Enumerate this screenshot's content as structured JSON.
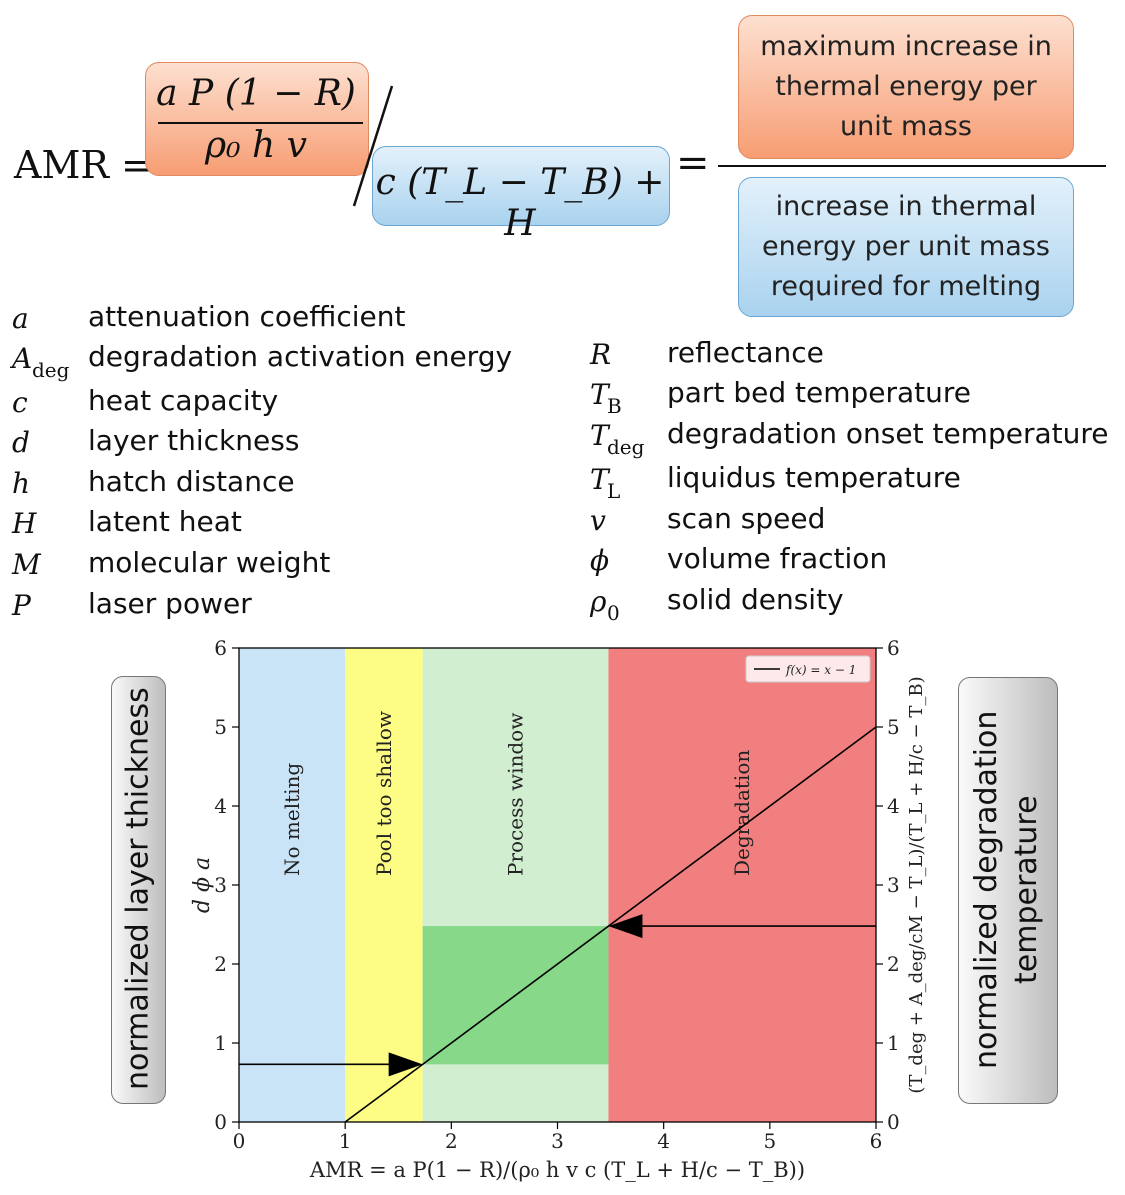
{
  "formula": {
    "lhs": "AMR =",
    "numerator_top": "a P (1 − R)",
    "numerator_bottom": "ρ₀ h v",
    "denominator": "c (T_L − T_B) + H",
    "equals": "=",
    "top_box": "maximum increase in thermal energy per unit mass",
    "bottom_box": "increase in thermal energy per unit mass required for melting"
  },
  "legend_left": [
    {
      "sym": "a",
      "desc": "attenuation coefficient"
    },
    {
      "sym": "A",
      "sub": "deg",
      "desc": "degradation activation energy"
    },
    {
      "sym": "c",
      "desc": "heat capacity"
    },
    {
      "sym": "d",
      "desc": "layer thickness"
    },
    {
      "sym": "h",
      "desc": "hatch distance"
    },
    {
      "sym": "H",
      "desc": "latent heat"
    },
    {
      "sym": "M",
      "desc": "molecular weight"
    },
    {
      "sym": "P",
      "desc": "laser power"
    }
  ],
  "legend_right": [
    {
      "sym": "R",
      "desc": "reflectance"
    },
    {
      "sym": "T",
      "sub": "B",
      "desc": "part bed temperature"
    },
    {
      "sym": "T",
      "sub": "deg",
      "desc": "degradation onset temperature"
    },
    {
      "sym": "T",
      "sub": "L",
      "desc": "liquidus temperature"
    },
    {
      "sym": "v",
      "desc": "scan speed"
    },
    {
      "sym": "ϕ",
      "desc": "volume fraction"
    },
    {
      "sym": "ρ",
      "sub": "0",
      "desc": "solid density"
    }
  ],
  "side_labels": {
    "left": "normalized layer thickness",
    "right": "normalized degradation temperature"
  },
  "chart_data": {
    "type": "line",
    "xlim": [
      0,
      6
    ],
    "ylim": [
      0,
      6
    ],
    "x_ticks": [
      0,
      1,
      2,
      3,
      4,
      5,
      6
    ],
    "y_ticks": [
      0,
      1,
      2,
      3,
      4,
      5,
      6
    ],
    "xlabel": "AMR = a P(1 − R)/(ρ₀ h v c (T_L + H/c − T_B))",
    "ylabel": "d ϕ a",
    "ylabel_right": "(T_deg + A_deg/cM − T_L)/(T_L + H/c − T_B)",
    "regions": [
      {
        "label": "No melting",
        "x": [
          0,
          1
        ],
        "color": "#c9e4f7"
      },
      {
        "label": "Pool too shallow",
        "x": [
          1,
          1.73
        ],
        "color": "#fdfd85"
      },
      {
        "label": "Process window",
        "x": [
          1.73,
          3.48
        ],
        "color": "#d1eed0"
      },
      {
        "label": "Degradation",
        "x": [
          3.48,
          6
        ],
        "color": "#f17f7f"
      }
    ],
    "highlight": {
      "x": [
        1.73,
        3.48
      ],
      "y": [
        0.73,
        2.48
      ],
      "color": "#87d889"
    },
    "series": [
      {
        "name": "f(x) = x − 1",
        "x": [
          1,
          6
        ],
        "y": [
          0,
          5
        ]
      }
    ],
    "arrows": [
      {
        "from": [
          0,
          0.73
        ],
        "to": [
          1.73,
          0.73
        ]
      },
      {
        "from": [
          6,
          2.48
        ],
        "to": [
          3.48,
          2.48
        ]
      }
    ],
    "legend": "top-right"
  }
}
